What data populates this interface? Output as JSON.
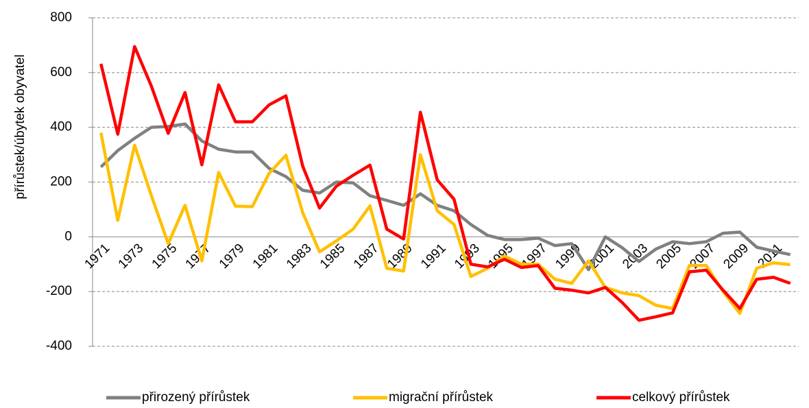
{
  "chart_data": {
    "type": "line",
    "y_label": "přírůstek/úbytek obyvatel",
    "categories": [
      "1971",
      null,
      "1973",
      null,
      "1975",
      null,
      "1977",
      null,
      "1979",
      null,
      "1981",
      null,
      "1983",
      null,
      "1985",
      null,
      "1987",
      null,
      "1989",
      null,
      "1991",
      null,
      "1993",
      null,
      "1995",
      null,
      "1997",
      null,
      "1999",
      null,
      "2001",
      null,
      "2003",
      null,
      "2005",
      null,
      "2007",
      null,
      "2009",
      null,
      "2011",
      null
    ],
    "series": [
      {
        "name": "přirozený přírůstek",
        "color": "#808080",
        "values": [
          255,
          315,
          360,
          400,
          403,
          412,
          350,
          320,
          310,
          310,
          250,
          220,
          170,
          160,
          200,
          197,
          150,
          133,
          115,
          157,
          115,
          95,
          45,
          5,
          -10,
          -10,
          -5,
          -32,
          -25,
          -120,
          0,
          -40,
          -90,
          -45,
          -18,
          -25,
          -18,
          13,
          17,
          -38,
          -52,
          -65
        ]
      },
      {
        "name": "migrační přírůstek",
        "color": "#ffc000",
        "values": [
          380,
          60,
          335,
          150,
          -25,
          115,
          -88,
          235,
          112,
          110,
          232,
          298,
          88,
          -55,
          -15,
          28,
          113,
          -115,
          -125,
          300,
          95,
          45,
          -145,
          -115,
          -70,
          -100,
          -100,
          -155,
          -170,
          -88,
          -185,
          -205,
          -215,
          -250,
          -262,
          -105,
          -105,
          -200,
          -280,
          -115,
          -95,
          -102
        ]
      },
      {
        "name": "celkový přírůstek",
        "color": "#ff0000",
        "values": [
          632,
          375,
          695,
          550,
          378,
          527,
          263,
          555,
          420,
          420,
          482,
          515,
          258,
          105,
          185,
          225,
          262,
          28,
          -8,
          455,
          208,
          137,
          -100,
          -110,
          -82,
          -112,
          -105,
          -188,
          -195,
          -205,
          -185,
          -240,
          -305,
          -292,
          -278,
          -128,
          -122,
          -195,
          -262,
          -155,
          -148,
          -170
        ]
      }
    ],
    "ylim": [
      -400,
      800
    ],
    "yticks": [
      -400,
      -200,
      0,
      200,
      400,
      600,
      800
    ],
    "grid": true
  }
}
